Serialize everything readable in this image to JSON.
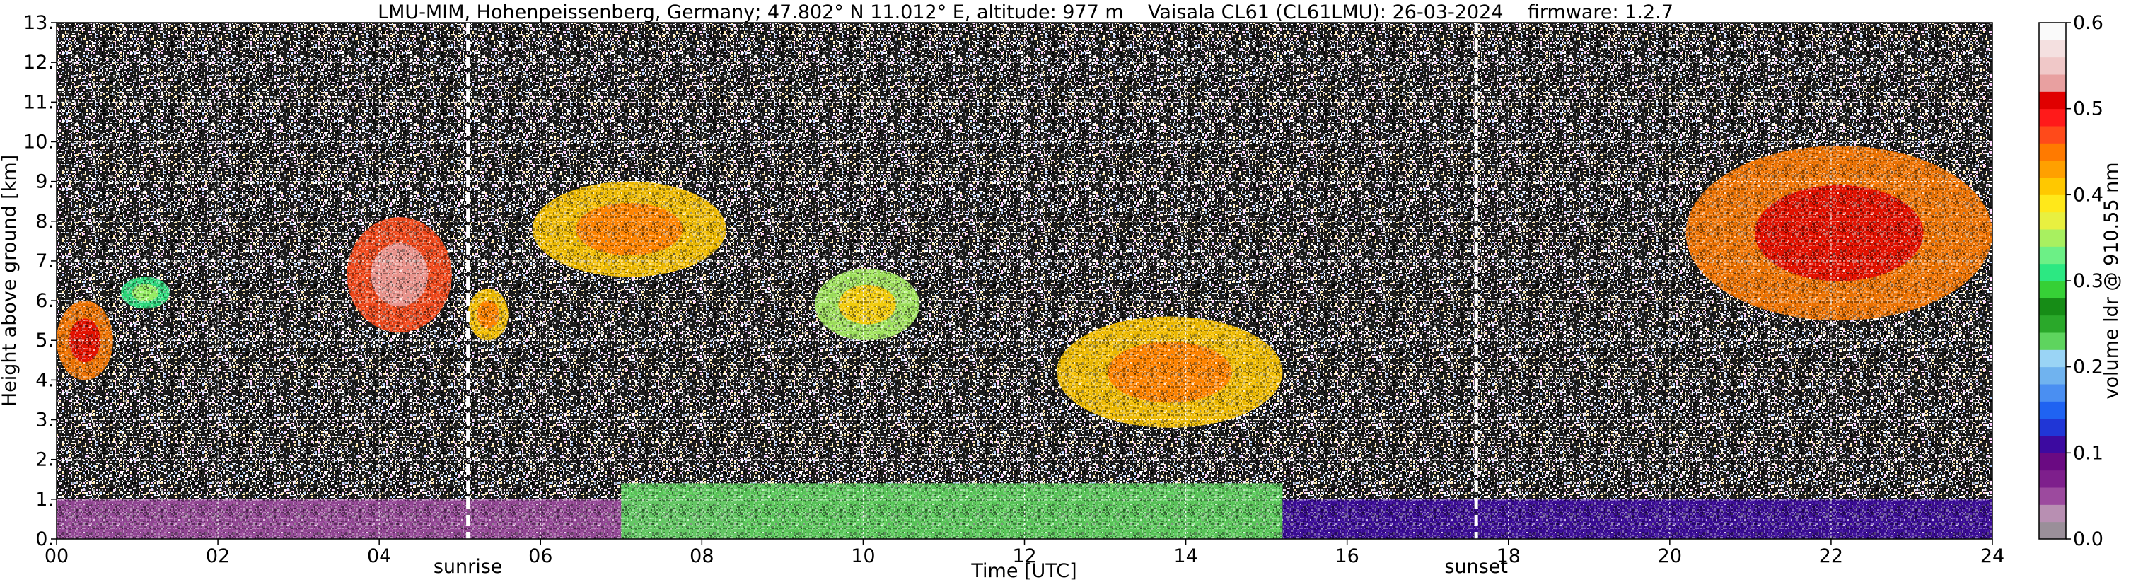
{
  "chart_data": {
    "type": "heatmap",
    "title": "LMU-MIM, Hohenpeissenberg, Germany; 47.802° N 11.012° E, altitude: 977 m    Vaisala CL61 (CL61LMU): 26-03-2024    firmware: 1.2.7",
    "xlabel": "Time [UTC]",
    "ylabel": "Height above ground [km]",
    "xlim": [
      0,
      24
    ],
    "ylim": [
      0,
      13
    ],
    "x_ticks": [
      "00",
      "02",
      "04",
      "06",
      "08",
      "10",
      "12",
      "14",
      "16",
      "18",
      "20",
      "22",
      "24"
    ],
    "y_ticks": [
      "0.",
      "1.",
      "2.",
      "3.",
      "4.",
      "5.",
      "6.",
      "7.",
      "8.",
      "9.",
      "10.",
      "11.",
      "12.",
      "13."
    ],
    "grid": true,
    "colorbar": {
      "label": "volume ldr @ 910.55 nm",
      "range": [
        0,
        0.6
      ],
      "ticks": [
        "0.0",
        "0.1",
        "0.2",
        "0.3",
        "0.4",
        "0.5",
        "0.6"
      ],
      "colors": [
        "#9a8f99",
        "#b88fb2",
        "#9c4a9e",
        "#7e1f8c",
        "#6a0a82",
        "#3c0aa0",
        "#2036d6",
        "#1f63f2",
        "#4a8ff2",
        "#70b3ef",
        "#9ad4f5",
        "#5ed45e",
        "#2aa82a",
        "#168c16",
        "#36d036",
        "#2ce882",
        "#6cf086",
        "#a8f060",
        "#e8f040",
        "#ffe81a",
        "#ffc800",
        "#ffa000",
        "#ff7a00",
        "#ff4a1a",
        "#ff1a1a",
        "#e00000",
        "#e8a0a0",
        "#f0c8c8",
        "#f4e0e0",
        "#fafafa"
      ]
    },
    "annotations": [
      {
        "label": "sunrise",
        "x": 5.1
      },
      {
        "label": "sunset",
        "x": 17.6
      }
    ],
    "background": "noise (black / white / colored speckle)",
    "features": [
      {
        "name": "boundary layer low ldr (purple)",
        "x": [
          0,
          8.5
        ],
        "y": [
          0,
          1.0
        ],
        "ldr": 0.05
      },
      {
        "name": "boundary layer (green)",
        "x": [
          7.0,
          15.2
        ],
        "y": [
          0,
          1.4
        ],
        "ldr": 0.22
      },
      {
        "name": "boundary layer (blue)",
        "x": [
          15.2,
          24
        ],
        "y": [
          0,
          1.0
        ],
        "ldr": 0.1
      },
      {
        "name": "cloud near 00h",
        "x": [
          0.0,
          0.7
        ],
        "y": [
          4.0,
          6.0
        ],
        "ldr": 0.45
      },
      {
        "name": "cloud near 01h",
        "x": [
          0.8,
          1.4
        ],
        "y": [
          5.8,
          6.6
        ],
        "ldr": 0.3
      },
      {
        "name": "cloud near 04-05h",
        "x": [
          3.6,
          4.9
        ],
        "y": [
          5.2,
          8.1
        ],
        "ldr": 0.47
      },
      {
        "name": "cloud near 05-06h",
        "x": [
          5.1,
          5.6
        ],
        "y": [
          5.0,
          6.3
        ],
        "ldr": 0.4
      },
      {
        "name": "cloud near 06-08h",
        "x": [
          5.9,
          8.3
        ],
        "y": [
          6.6,
          9.0
        ],
        "ldr": 0.4
      },
      {
        "name": "cloud near 09-10h",
        "x": [
          9.4,
          10.7
        ],
        "y": [
          5.0,
          6.8
        ],
        "ldr": 0.35
      },
      {
        "name": "cloud near 12-15h",
        "x": [
          12.4,
          15.2
        ],
        "y": [
          2.8,
          5.6
        ],
        "ldr": 0.4
      },
      {
        "name": "cloud near 20-24h",
        "x": [
          20.2,
          24.0
        ],
        "y": [
          5.5,
          9.9
        ],
        "ldr": 0.45
      }
    ]
  }
}
